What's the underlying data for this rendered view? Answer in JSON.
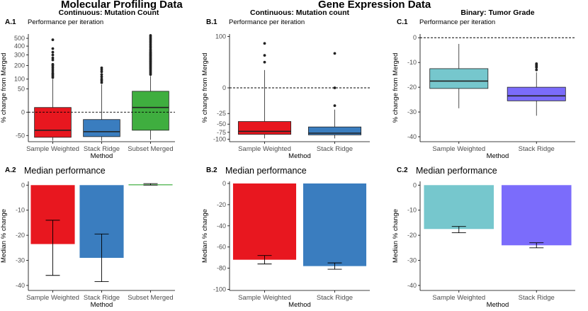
{
  "sections": {
    "molecular": "Molecular Profiling Data",
    "gene": "Gene Expression Data"
  },
  "colors": {
    "sample_weighted": "#e8171f",
    "stack_ridge": "#3a7dbf",
    "subset_merged": "#3fae3f",
    "tumor_sample": "#76c7cd",
    "tumor_stack": "#7b6cfb",
    "axis": "#000000",
    "tick_text": "#4d4d4d"
  },
  "chart_data": [
    {
      "id": "A1",
      "type": "box",
      "panel_label": "A.1",
      "header": "Continuous: Mutation Count",
      "subtitle": "Performance per iteration",
      "ylabel": "% change from Merged",
      "xlabel": "Method",
      "ylim": [
        -80,
        560
      ],
      "yticks": [
        -50,
        0,
        50,
        100,
        200,
        300,
        400,
        500
      ],
      "reference_line": 0,
      "categories": [
        "Sample Weighted",
        "Stack Ridge",
        "Subset Merged"
      ],
      "colors": [
        "#e8171f",
        "#3a7dbf",
        "#3fae3f"
      ],
      "boxes": [
        {
          "q1": -58,
          "median": -30,
          "q3": 2,
          "whisker_low": -75,
          "whisker_high": 100,
          "outliers": [
            110,
            120,
            130,
            140,
            155,
            170,
            185,
            200,
            210,
            250,
            270,
            300,
            330,
            370,
            480
          ]
        },
        {
          "q1": -55,
          "median": -35,
          "q3": -5,
          "whisker_low": -75,
          "whisker_high": 70,
          "outliers": [
            80,
            90,
            100,
            115,
            130,
            150,
            165,
            180
          ]
        },
        {
          "q1": -30,
          "median": 2,
          "q3": 40,
          "whisker_low": -70,
          "whisker_high": 120,
          "outliers": [
            130,
            140,
            150,
            160,
            170,
            180,
            190,
            200,
            210,
            220,
            230,
            240,
            250,
            260,
            270,
            280,
            290,
            300,
            310,
            320,
            330,
            345,
            360,
            380,
            400,
            420,
            440,
            460,
            480,
            500,
            520,
            540
          ]
        }
      ]
    },
    {
      "id": "B1",
      "type": "box",
      "panel_label": "B.1",
      "header": "Continuous: Mutation count",
      "subtitle": "Performance per iteration",
      "ylabel": "% change from Merged",
      "xlabel": "Method",
      "ylim": [
        -110,
        110
      ],
      "yticks": [
        -100,
        -75,
        -50,
        -25,
        0,
        100
      ],
      "reference_line": 0,
      "categories": [
        "Sample Weighted",
        "Stack Ridge"
      ],
      "colors": [
        "#e8171f",
        "#3a7dbf"
      ],
      "boxes": [
        {
          "q1": -82,
          "median": -72,
          "q3": -43,
          "whisker_low": -97,
          "whisker_high": 12,
          "outliers": [
            25,
            40,
            75
          ]
        },
        {
          "q1": -84,
          "median": -78,
          "q3": -58,
          "whisker_low": -97,
          "whisker_high": -18,
          "outliers": [
            -12,
            0,
            45
          ]
        }
      ]
    },
    {
      "id": "C1",
      "type": "box",
      "panel_label": "C.1",
      "header": "Binary: Tumor Grade",
      "subtitle": "Performance per iteration",
      "ylabel": "% change from Merged",
      "xlabel": "Method",
      "ylim": [
        -42,
        1.5
      ],
      "yticks": [
        0,
        -10,
        -20,
        -30,
        -40
      ],
      "reference_line": 0,
      "categories": [
        "Sample Weighted",
        "Stack Ridge"
      ],
      "colors": [
        "#76c7cd",
        "#7b6cfb"
      ],
      "boxes": [
        {
          "q1": -20.5,
          "median": -17.5,
          "q3": -12.5,
          "whisker_low": -28.5,
          "whisker_high": -2.5,
          "outliers": []
        },
        {
          "q1": -25.5,
          "median": -23.5,
          "q3": -20,
          "whisker_low": -31.5,
          "whisker_high": -14,
          "outliers": [
            -13,
            -12,
            -11.5,
            -11,
            -10.5
          ]
        }
      ]
    },
    {
      "id": "A2",
      "type": "bar",
      "panel_label": "A.2",
      "title": "Median performance",
      "ylabel": "Median % change",
      "xlabel": "Method",
      "ylim": [
        -42,
        1.5
      ],
      "yticks": [
        0,
        -10,
        -20,
        -30,
        -40
      ],
      "categories": [
        "Sample Weighted",
        "Stack Ridge",
        "Subset Merged"
      ],
      "colors": [
        "#e8171f",
        "#3a7dbf",
        "#3fae3f"
      ],
      "values": [
        -23.5,
        -29,
        0.3
      ],
      "error_low": [
        -36,
        -38.5,
        0
      ],
      "error_high": [
        -14,
        -19.5,
        0.6
      ]
    },
    {
      "id": "B2",
      "type": "bar",
      "panel_label": "B.2",
      "title": "Median performance",
      "ylabel": "Median % change",
      "xlabel": "Method",
      "ylim": [
        -101,
        2
      ],
      "yticks": [
        0,
        -20,
        -40,
        -60,
        -80,
        -100
      ],
      "categories": [
        "Sample Weighted",
        "Stack Ridge"
      ],
      "colors": [
        "#e8171f",
        "#3a7dbf"
      ],
      "values": [
        -72,
        -78
      ],
      "error_low": [
        -76,
        -81
      ],
      "error_high": [
        -68,
        -75
      ]
    },
    {
      "id": "C2",
      "type": "bar",
      "panel_label": "C.2",
      "title": "Median performance",
      "ylabel": "Median % change",
      "xlabel": "Method",
      "ylim": [
        -42,
        1.5
      ],
      "yticks": [
        0,
        -10,
        -20,
        -30,
        -40
      ],
      "categories": [
        "Sample Weighted",
        "Stack Ridge"
      ],
      "colors": [
        "#76c7cd",
        "#7b6cfb"
      ],
      "values": [
        -17.5,
        -24
      ],
      "error_low": [
        -19,
        -25
      ],
      "error_high": [
        -16.5,
        -23
      ]
    }
  ]
}
